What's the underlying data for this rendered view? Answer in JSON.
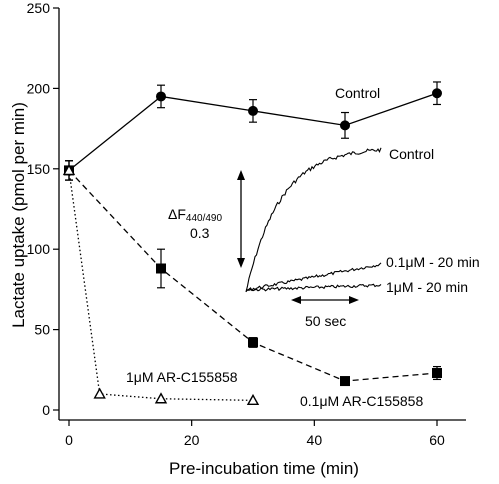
{
  "chart_data": {
    "type": "line",
    "xlabel": "Pre-incubation time (min)",
    "ylabel": "Lactate uptake (pmol per min)",
    "xlim": [
      0,
      60
    ],
    "ylim": [
      0,
      250
    ],
    "xticks": [
      0,
      20,
      40,
      60
    ],
    "yticks": [
      0,
      50,
      100,
      150,
      200,
      250
    ],
    "grid": false,
    "series": [
      {
        "name": "Control",
        "marker": "circle",
        "line_style": "solid",
        "x": [
          0,
          15,
          30,
          45,
          60
        ],
        "y": [
          149,
          195,
          186,
          177,
          197
        ],
        "err": [
          6,
          7,
          7,
          8,
          7
        ]
      },
      {
        "name": "0.1μM AR-C155858",
        "marker": "square",
        "line_style": "dashed",
        "x": [
          0,
          15,
          30,
          45,
          60
        ],
        "y": [
          149,
          88,
          42,
          18,
          23
        ],
        "err": [
          6,
          12,
          3,
          2,
          4
        ]
      },
      {
        "name": "1μM AR-C155858",
        "marker": "triangle",
        "line_style": "dotted",
        "x": [
          0,
          5,
          15,
          30
        ],
        "y": [
          149,
          10,
          7,
          6
        ],
        "err": [
          6,
          0,
          0,
          0
        ]
      }
    ],
    "inset": {
      "scale_label_symbol": "ΔF",
      "scale_label_sub": "440/490",
      "scale_value": "0.3",
      "time_bar_label": "50 sec",
      "trace_labels": [
        "Control",
        "0.1μM - 20 min",
        "1μM - 20 min"
      ]
    }
  }
}
